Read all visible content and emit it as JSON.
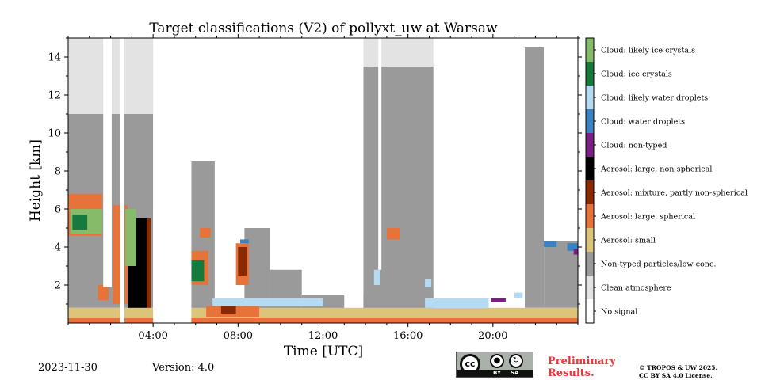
{
  "chart_data": {
    "type": "heatmap",
    "title": "Target classifications (V2) of pollyxt_uw at Warsaw",
    "xlabel": "Time [UTC]",
    "ylabel": "Height [km]",
    "xlim_hours": [
      0,
      24
    ],
    "ylim_km": [
      0,
      15
    ],
    "xticks": [
      {
        "value": 4,
        "label": "04:00"
      },
      {
        "value": 8,
        "label": "08:00"
      },
      {
        "value": 12,
        "label": "12:00"
      },
      {
        "value": 16,
        "label": "16:00"
      },
      {
        "value": 20,
        "label": "20:00"
      }
    ],
    "yticks": [
      {
        "value": 2,
        "label": "2"
      },
      {
        "value": 4,
        "label": "4"
      },
      {
        "value": 6,
        "label": "6"
      },
      {
        "value": 8,
        "label": "8"
      },
      {
        "value": 10,
        "label": "10"
      },
      {
        "value": 12,
        "label": "12"
      },
      {
        "value": 14,
        "label": "14"
      }
    ],
    "classes": [
      {
        "label": "No signal",
        "color": "#ffffff"
      },
      {
        "label": "Clean atmosphere",
        "color": "#e3e3e3"
      },
      {
        "label": "Non-typed particles/low conc.",
        "color": "#9a9a9a"
      },
      {
        "label": "Aerosol: small",
        "color": "#dcc57a"
      },
      {
        "label": "Aerosol: large, spherical",
        "color": "#e8733a"
      },
      {
        "label": "Aerosol: mixture, partly non-spherical",
        "color": "#8a2a00"
      },
      {
        "label": "Aerosol: large, non-spherical",
        "color": "#000000"
      },
      {
        "label": "Cloud: non-typed",
        "color": "#7b1f86"
      },
      {
        "label": "Cloud: water droplets",
        "color": "#3b82c4"
      },
      {
        "label": "Cloud: likely water droplets",
        "color": "#b4dbf2"
      },
      {
        "label": "Cloud: ice crystals",
        "color": "#157a3c"
      },
      {
        "label": "Cloud: likely ice crystals",
        "color": "#86bb69"
      }
    ],
    "layers": [
      {
        "cls": 1,
        "t0": 0,
        "t1": 4.3,
        "z0": 6.0,
        "z1": 15.0
      },
      {
        "cls": 2,
        "t0": 0,
        "t1": 4.0,
        "z0": 0.8,
        "z1": 11.0
      },
      {
        "cls": 2,
        "t0": 5.8,
        "t1": 6.9,
        "z0": 0.3,
        "z1": 8.5
      },
      {
        "cls": 2,
        "t0": 8.3,
        "t1": 9.5,
        "z0": 0.5,
        "z1": 5.0
      },
      {
        "cls": 2,
        "t0": 9.5,
        "t1": 11.0,
        "z0": 0.5,
        "z1": 2.8
      },
      {
        "cls": 2,
        "t0": 11.0,
        "t1": 13.0,
        "z0": 0.6,
        "z1": 1.5
      },
      {
        "cls": 2,
        "t0": 13.9,
        "t1": 17.2,
        "z0": 0.6,
        "z1": 13.5
      },
      {
        "cls": 1,
        "t0": 13.9,
        "t1": 17.2,
        "z0": 13.5,
        "z1": 15.0
      },
      {
        "cls": 2,
        "t0": 21.5,
        "t1": 22.4,
        "z0": 0.8,
        "z1": 14.5
      },
      {
        "cls": 2,
        "t0": 22.4,
        "t1": 24.0,
        "z0": 0.8,
        "z1": 4.3
      },
      {
        "cls": 3,
        "t0": 0,
        "t1": 24.0,
        "z0": 0.1,
        "z1": 0.8
      },
      {
        "cls": 4,
        "t0": 0,
        "t1": 24.0,
        "z0": 0.0,
        "z1": 0.25
      },
      {
        "cls": 4,
        "t0": 6.5,
        "t1": 9.0,
        "z0": 0.3,
        "z1": 0.9
      },
      {
        "cls": 4,
        "t0": 1.4,
        "t1": 1.9,
        "z0": 1.2,
        "z1": 2.0
      },
      {
        "cls": 4,
        "t0": 7.9,
        "t1": 8.5,
        "z0": 2.0,
        "z1": 4.2
      },
      {
        "cls": 5,
        "t0": 7.2,
        "t1": 7.9,
        "z0": 0.5,
        "z1": 0.9
      },
      {
        "cls": 5,
        "t0": 8.0,
        "t1": 8.4,
        "z0": 2.5,
        "z1": 4.0
      },
      {
        "cls": 6,
        "t0": 2.8,
        "t1": 3.7,
        "z0": 0.8,
        "z1": 5.5
      },
      {
        "cls": 5,
        "t0": 3.7,
        "t1": 3.9,
        "z0": 0.8,
        "z1": 5.5
      },
      {
        "cls": 4,
        "t0": 0,
        "t1": 1.6,
        "z0": 4.6,
        "z1": 6.8
      },
      {
        "cls": 11,
        "t0": 0.1,
        "t1": 1.6,
        "z0": 4.7,
        "z1": 6.0
      },
      {
        "cls": 10,
        "t0": 0.2,
        "t1": 0.9,
        "z0": 4.9,
        "z1": 5.7
      },
      {
        "cls": 4,
        "t0": 2.1,
        "t1": 2.8,
        "z0": 1.0,
        "z1": 6.2
      },
      {
        "cls": 11,
        "t0": 2.7,
        "t1": 3.2,
        "z0": 3.0,
        "z1": 6.0
      },
      {
        "cls": 4,
        "t0": 5.8,
        "t1": 6.6,
        "z0": 2.0,
        "z1": 3.8
      },
      {
        "cls": 10,
        "t0": 5.8,
        "t1": 6.4,
        "z0": 2.2,
        "z1": 3.3
      },
      {
        "cls": 4,
        "t0": 6.2,
        "t1": 6.7,
        "z0": 4.5,
        "z1": 5.0
      },
      {
        "cls": 4,
        "t0": 15.0,
        "t1": 15.6,
        "z0": 4.4,
        "z1": 5.0
      },
      {
        "cls": 9,
        "t0": 6.8,
        "t1": 12.0,
        "z0": 0.9,
        "z1": 1.3
      },
      {
        "cls": 9,
        "t0": 14.4,
        "t1": 14.7,
        "z0": 2.0,
        "z1": 2.8
      },
      {
        "cls": 9,
        "t0": 16.8,
        "t1": 19.8,
        "z0": 0.8,
        "z1": 1.3
      },
      {
        "cls": 9,
        "t0": 21.0,
        "t1": 21.4,
        "z0": 1.3,
        "z1": 1.6
      },
      {
        "cls": 9,
        "t0": 16.8,
        "t1": 17.1,
        "z0": 1.9,
        "z1": 2.3
      },
      {
        "cls": 8,
        "t0": 22.4,
        "t1": 23.0,
        "z0": 4.0,
        "z1": 4.3
      },
      {
        "cls": 8,
        "t0": 23.5,
        "t1": 24.0,
        "z0": 3.8,
        "z1": 4.2
      },
      {
        "cls": 8,
        "t0": 8.1,
        "t1": 8.5,
        "z0": 4.2,
        "z1": 4.4
      },
      {
        "cls": 7,
        "t0": 23.8,
        "t1": 24.0,
        "z0": 3.6,
        "z1": 3.9
      },
      {
        "cls": 7,
        "t0": 19.9,
        "t1": 20.6,
        "z0": 1.1,
        "z1": 1.3
      },
      {
        "cls": 0,
        "t0": 1.65,
        "t1": 2.05,
        "z0": 1.9,
        "z1": 15.0
      },
      {
        "cls": 0,
        "t0": 2.45,
        "t1": 2.65,
        "z0": 0.0,
        "z1": 15.0
      },
      {
        "cls": 0,
        "t0": 4.0,
        "t1": 5.8,
        "z0": 0.0,
        "z1": 15.0
      },
      {
        "cls": 0,
        "t0": 14.6,
        "t1": 14.75,
        "z0": 2.8,
        "z1": 15.0
      },
      {
        "cls": 0,
        "t0": 17.2,
        "t1": 21.5,
        "z0": 1.6,
        "z1": 15.0
      },
      {
        "cls": 0,
        "t0": 22.4,
        "t1": 24.0,
        "z0": 4.4,
        "z1": 15.0
      },
      {
        "cls": 0,
        "t0": 12.9,
        "t1": 13.9,
        "z0": 1.5,
        "z1": 15.0
      }
    ]
  },
  "legend_labels": [
    "Cloud: likely ice crystals",
    "Cloud: ice crystals",
    "Cloud: likely water droplets",
    "Cloud: water droplets",
    "Cloud: non-typed",
    "Aerosol: large, non-spherical",
    "Aerosol: mixture, partly non-spherical",
    "Aerosol: large, spherical",
    "Aerosol: small",
    "Non-typed particles/low conc.",
    "Clean atmosphere",
    "No signal"
  ],
  "footer": {
    "date": "2023-11-30",
    "version": "Version: 4.0",
    "prelim_line1": "Preliminary",
    "prelim_line2": "Results.",
    "copyright_line1": "© TROPOS & UW 2025.",
    "copyright_line2": "CC BY SA 4.0 License.",
    "license_badge": {
      "cc": "cc",
      "by": "BY",
      "sa": "SA"
    }
  }
}
